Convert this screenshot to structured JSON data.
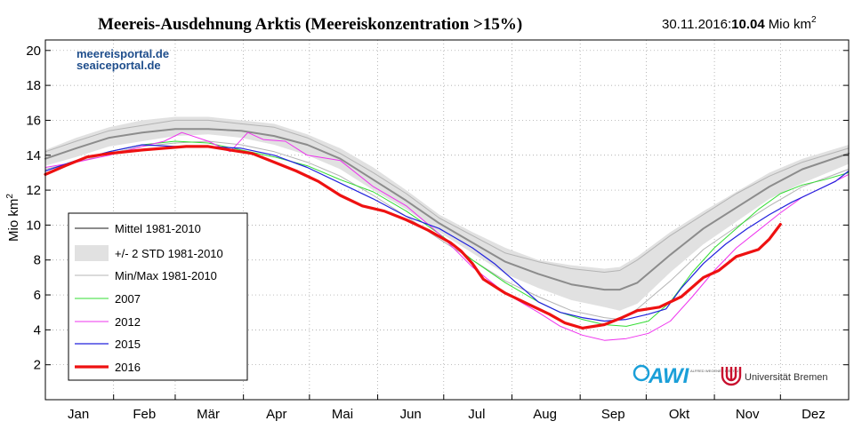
{
  "header": {
    "title": "Meereis-Ausdehnung Arktis (Meereiskonzentration >15%)",
    "date": "30.11.2016:",
    "value": "10.04",
    "unit": "Mio km",
    "unit_sup": "2"
  },
  "watermark": {
    "line1": "meereisportal.de",
    "line2": "seaiceportal.de"
  },
  "logos": {
    "awi": "AWI",
    "awi_small": "ALFRED WEGENER INSTITUT",
    "uni": "Universität Bremen"
  },
  "colors": {
    "mean": "#8c8c8c",
    "band": "#e1e1e1",
    "minmax": "#b4b4b4",
    "y2007": "#33dd33",
    "y2012": "#ee33ee",
    "y2015": "#2222dd",
    "y2016": "#ee1111",
    "awi_blue": "#1a9fd8",
    "uni_red": "#c8102e",
    "site_blue": "#1f4e8c"
  },
  "chart_data": {
    "type": "line",
    "title": "Meereis-Ausdehnung Arktis (Meereiskonzentration >15%)",
    "xlabel": "",
    "ylabel": "Mio km",
    "ylabel_sup": "2",
    "x_unit": "day of year",
    "xlim": [
      1,
      366
    ],
    "ylim": [
      0,
      20.6
    ],
    "yticks": [
      2,
      4,
      6,
      8,
      10,
      12,
      14,
      16,
      18,
      20
    ],
    "months": [
      {
        "label": "Jan",
        "day": 16
      },
      {
        "label": "Feb",
        "day": 46
      },
      {
        "label": "Mär",
        "day": 75
      },
      {
        "label": "Apr",
        "day": 106
      },
      {
        "label": "Mai",
        "day": 136
      },
      {
        "label": "Jun",
        "day": 167
      },
      {
        "label": "Jul",
        "day": 197
      },
      {
        "label": "Aug",
        "day": 228
      },
      {
        "label": "Sep",
        "day": 259
      },
      {
        "label": "Okt",
        "day": 289
      },
      {
        "label": "Nov",
        "day": 320
      },
      {
        "label": "Dez",
        "day": 350
      }
    ],
    "grid": true,
    "legend_position": "bottom-left",
    "legend": [
      {
        "key": "mean",
        "label": "Mittel 1981-2010"
      },
      {
        "key": "band",
        "label": "+/- 2 STD 1981-2010"
      },
      {
        "key": "minmax",
        "label": "Min/Max 1981-2010"
      },
      {
        "key": "y2007",
        "label": "2007"
      },
      {
        "key": "y2012",
        "label": "2012"
      },
      {
        "key": "y2015",
        "label": "2015"
      },
      {
        "key": "y2016",
        "label": "2016"
      }
    ],
    "band": {
      "name": "+/- 2 STD 1981-2010",
      "x": [
        1,
        15,
        30,
        45,
        60,
        75,
        90,
        105,
        120,
        135,
        150,
        165,
        180,
        195,
        210,
        225,
        240,
        255,
        262,
        270,
        285,
        300,
        315,
        330,
        345,
        366
      ],
      "upper": [
        14.3,
        15.0,
        15.6,
        16.0,
        16.2,
        16.2,
        16.0,
        15.8,
        15.2,
        14.4,
        13.3,
        12.0,
        10.6,
        9.6,
        8.7,
        8.0,
        7.7,
        7.5,
        7.6,
        8.2,
        9.6,
        10.8,
        11.9,
        13.0,
        13.8,
        14.6
      ],
      "lower": [
        13.4,
        13.9,
        14.5,
        14.8,
        15.1,
        15.2,
        15.0,
        14.6,
        14.0,
        13.2,
        12.0,
        10.9,
        9.6,
        8.4,
        7.2,
        6.4,
        5.7,
        5.3,
        5.1,
        5.5,
        7.3,
        8.9,
        10.2,
        11.5,
        12.4,
        13.5
      ]
    },
    "series": [
      {
        "key": "minmax",
        "name": "Min/Max 1981-2010",
        "x": [
          1,
          15,
          30,
          45,
          60,
          75,
          90,
          105,
          120,
          135,
          150,
          165,
          180,
          195,
          210,
          225,
          240,
          255,
          262,
          270,
          285,
          300,
          315,
          330,
          345,
          366
        ],
        "values": [
          13.2,
          13.6,
          14.1,
          14.5,
          14.7,
          14.8,
          14.6,
          14.2,
          13.6,
          12.8,
          11.7,
          10.5,
          9.2,
          8.0,
          6.8,
          5.9,
          5.1,
          4.7,
          4.6,
          5.2,
          6.8,
          8.6,
          9.9,
          11.1,
          12.2,
          13.2
        ]
      },
      {
        "key": "minmax",
        "name": "Min/Max 1981-2010",
        "x": [
          1,
          15,
          30,
          45,
          60,
          75,
          90,
          105,
          120,
          135,
          150,
          165,
          180,
          195,
          210,
          225,
          240,
          255,
          262,
          270,
          285,
          300,
          315,
          330,
          345,
          366
        ],
        "values": [
          14.2,
          14.8,
          15.4,
          15.7,
          16.0,
          16.0,
          15.8,
          15.6,
          15.0,
          14.1,
          13.0,
          11.8,
          10.4,
          9.4,
          8.4,
          7.9,
          7.5,
          7.3,
          7.4,
          8.0,
          9.4,
          10.6,
          11.8,
          12.8,
          13.6,
          14.4
        ]
      },
      {
        "key": "mean",
        "name": "Mittel 1981-2010",
        "x": [
          1,
          15,
          30,
          45,
          60,
          75,
          90,
          105,
          120,
          135,
          150,
          165,
          180,
          195,
          210,
          225,
          240,
          255,
          262,
          270,
          285,
          300,
          315,
          330,
          345,
          366
        ],
        "values": [
          13.8,
          14.4,
          15.0,
          15.3,
          15.5,
          15.5,
          15.4,
          15.1,
          14.6,
          13.8,
          12.6,
          11.4,
          10.1,
          9.0,
          7.9,
          7.2,
          6.6,
          6.3,
          6.3,
          6.7,
          8.3,
          9.8,
          11.0,
          12.2,
          13.2,
          14.1
        ]
      },
      {
        "key": "y2007",
        "name": "2007",
        "x": [
          1,
          15,
          30,
          45,
          60,
          75,
          90,
          105,
          120,
          135,
          150,
          165,
          180,
          195,
          210,
          225,
          235,
          245,
          255,
          265,
          275,
          285,
          295,
          305,
          315,
          325,
          335,
          345,
          355,
          366
        ],
        "values": [
          13.1,
          13.7,
          14.2,
          14.6,
          14.8,
          14.7,
          14.3,
          13.9,
          13.4,
          12.6,
          11.9,
          10.8,
          9.5,
          8.0,
          6.7,
          5.6,
          5.0,
          4.6,
          4.3,
          4.2,
          4.5,
          5.6,
          7.3,
          8.7,
          9.8,
          10.9,
          11.8,
          12.3,
          12.6,
          13.0
        ]
      },
      {
        "key": "y2012",
        "name": "2012",
        "x": [
          1,
          15,
          30,
          45,
          55,
          63,
          75,
          85,
          93,
          100,
          110,
          120,
          135,
          150,
          165,
          180,
          195,
          210,
          225,
          235,
          245,
          255,
          265,
          275,
          285,
          295,
          305,
          315,
          325,
          335,
          345,
          355,
          366
        ],
        "values": [
          13.3,
          13.6,
          14.0,
          14.5,
          14.8,
          15.3,
          14.8,
          14.2,
          15.3,
          14.9,
          14.8,
          14.0,
          13.7,
          12.2,
          11.1,
          9.5,
          7.6,
          6.1,
          5.0,
          4.2,
          3.7,
          3.4,
          3.5,
          3.8,
          4.5,
          5.9,
          7.4,
          8.7,
          9.7,
          10.7,
          11.6,
          12.2,
          12.9
        ]
      },
      {
        "key": "y2015",
        "name": "2015",
        "x": [
          1,
          15,
          30,
          45,
          60,
          75,
          90,
          105,
          120,
          135,
          150,
          165,
          180,
          195,
          205,
          215,
          225,
          235,
          245,
          255,
          265,
          275,
          283,
          290,
          300,
          310,
          320,
          330,
          340,
          350,
          360,
          366
        ],
        "values": [
          13.1,
          13.7,
          14.2,
          14.6,
          14.5,
          14.5,
          14.4,
          14.0,
          13.3,
          12.4,
          11.5,
          10.5,
          9.8,
          8.7,
          7.8,
          6.7,
          5.6,
          5.0,
          4.7,
          4.5,
          4.6,
          4.9,
          5.2,
          6.4,
          7.8,
          8.9,
          9.8,
          10.6,
          11.3,
          11.9,
          12.5,
          13.1
        ]
      },
      {
        "key": "y2016",
        "name": "2016",
        "x": [
          1,
          10,
          20,
          30,
          45,
          55,
          65,
          75,
          85,
          95,
          105,
          115,
          125,
          135,
          145,
          155,
          165,
          175,
          185,
          190,
          195,
          200,
          210,
          220,
          230,
          237,
          245,
          255,
          263,
          270,
          280,
          290,
          300,
          307,
          315,
          325,
          330,
          335
        ],
        "values": [
          12.9,
          13.4,
          13.9,
          14.1,
          14.3,
          14.4,
          14.5,
          14.5,
          14.3,
          14.1,
          13.6,
          13.1,
          12.5,
          11.7,
          11.1,
          10.8,
          10.3,
          9.7,
          9.0,
          8.5,
          7.8,
          6.9,
          6.1,
          5.5,
          4.9,
          4.4,
          4.1,
          4.3,
          4.7,
          5.1,
          5.3,
          5.9,
          7.0,
          7.4,
          8.2,
          8.6,
          9.2,
          10.04
        ]
      }
    ]
  }
}
